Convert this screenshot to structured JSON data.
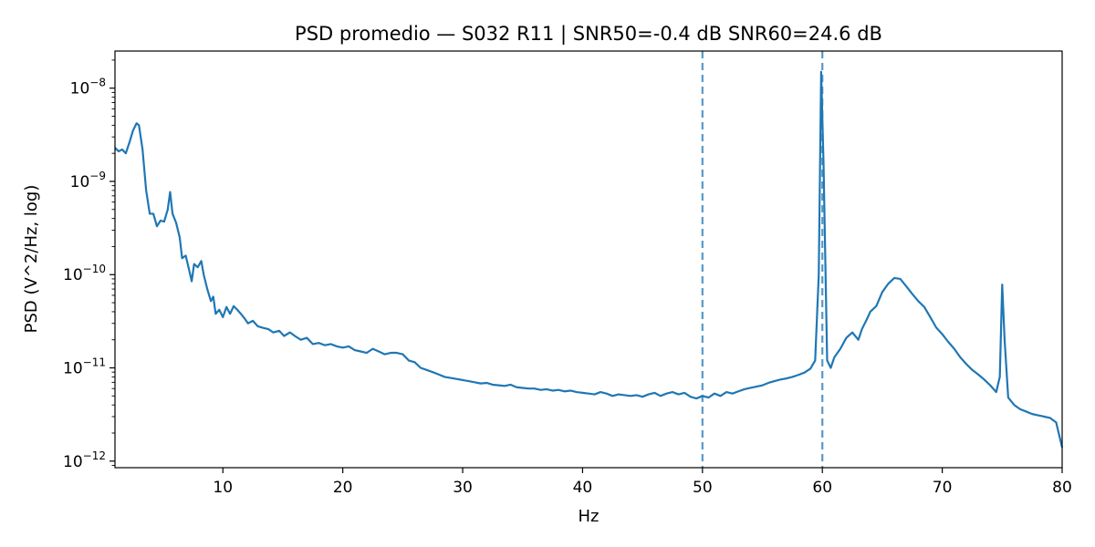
{
  "chart_data": {
    "type": "line",
    "title": "PSD promedio — S032 R11 | SNR50=-0.4 dB  SNR60=24.6 dB",
    "xlabel": "Hz",
    "ylabel": "PSD (V^2/Hz, log)",
    "xlim": [
      1,
      80
    ],
    "ylim": [
      8.5e-13,
      2.5e-08
    ],
    "yscale": "log",
    "grid": false,
    "xticks": [
      10,
      20,
      30,
      40,
      50,
      60,
      70,
      80
    ],
    "xtick_labels": [
      "10",
      "20",
      "30",
      "40",
      "50",
      "60",
      "70",
      "80"
    ],
    "yticks": [
      1e-12,
      1e-11,
      1e-10,
      1e-09,
      1e-08
    ],
    "ytick_labels": [
      {
        "base": "10",
        "exp": "−12"
      },
      {
        "base": "10",
        "exp": "−11"
      },
      {
        "base": "10",
        "exp": "−10"
      },
      {
        "base": "10",
        "exp": "−9"
      },
      {
        "base": "10",
        "exp": "−8"
      }
    ],
    "vlines": [
      {
        "x": 50,
        "style": "dashed"
      },
      {
        "x": 60,
        "style": "dashed"
      }
    ],
    "colors": {
      "series": "#1f77b4",
      "vline": "#1f77b4"
    },
    "series": [
      {
        "name": "",
        "points": [
          [
            1.0,
            2.3e-09
          ],
          [
            1.3,
            2.1e-09
          ],
          [
            1.6,
            2.2e-09
          ],
          [
            1.9,
            2e-09
          ],
          [
            2.2,
            2.6e-09
          ],
          [
            2.5,
            3.5e-09
          ],
          [
            2.8,
            4.2e-09
          ],
          [
            3.0,
            4e-09
          ],
          [
            3.3,
            2.2e-09
          ],
          [
            3.6,
            8e-10
          ],
          [
            3.9,
            4.5e-10
          ],
          [
            4.2,
            4.5e-10
          ],
          [
            4.5,
            3.3e-10
          ],
          [
            4.8,
            3.8e-10
          ],
          [
            5.1,
            3.7e-10
          ],
          [
            5.4,
            5e-10
          ],
          [
            5.6,
            7.7e-10
          ],
          [
            5.8,
            4.5e-10
          ],
          [
            6.1,
            3.6e-10
          ],
          [
            6.4,
            2.5e-10
          ],
          [
            6.6,
            1.5e-10
          ],
          [
            6.9,
            1.6e-10
          ],
          [
            7.2,
            1.1e-10
          ],
          [
            7.4,
            8.5e-11
          ],
          [
            7.6,
            1.3e-10
          ],
          [
            7.9,
            1.2e-10
          ],
          [
            8.2,
            1.4e-10
          ],
          [
            8.4,
            1e-10
          ],
          [
            8.7,
            7e-11
          ],
          [
            9.0,
            5.2e-11
          ],
          [
            9.2,
            5.8e-11
          ],
          [
            9.4,
            3.8e-11
          ],
          [
            9.7,
            4.2e-11
          ],
          [
            10.0,
            3.5e-11
          ],
          [
            10.3,
            4.5e-11
          ],
          [
            10.6,
            3.8e-11
          ],
          [
            10.9,
            4.6e-11
          ],
          [
            11.2,
            4.2e-11
          ],
          [
            11.5,
            3.8e-11
          ],
          [
            11.8,
            3.4e-11
          ],
          [
            12.1,
            3e-11
          ],
          [
            12.5,
            3.2e-11
          ],
          [
            12.9,
            2.8e-11
          ],
          [
            13.3,
            2.7e-11
          ],
          [
            13.8,
            2.6e-11
          ],
          [
            14.2,
            2.4e-11
          ],
          [
            14.7,
            2.5e-11
          ],
          [
            15.1,
            2.2e-11
          ],
          [
            15.6,
            2.4e-11
          ],
          [
            16.0,
            2.2e-11
          ],
          [
            16.5,
            2e-11
          ],
          [
            17.0,
            2.1e-11
          ],
          [
            17.5,
            1.8e-11
          ],
          [
            18.0,
            1.85e-11
          ],
          [
            18.5,
            1.75e-11
          ],
          [
            19.0,
            1.8e-11
          ],
          [
            19.5,
            1.7e-11
          ],
          [
            20.0,
            1.65e-11
          ],
          [
            20.5,
            1.7e-11
          ],
          [
            21.0,
            1.55e-11
          ],
          [
            21.5,
            1.5e-11
          ],
          [
            22.0,
            1.45e-11
          ],
          [
            22.5,
            1.6e-11
          ],
          [
            23.0,
            1.5e-11
          ],
          [
            23.5,
            1.4e-11
          ],
          [
            24.0,
            1.45e-11
          ],
          [
            24.5,
            1.45e-11
          ],
          [
            25.0,
            1.4e-11
          ],
          [
            25.5,
            1.2e-11
          ],
          [
            26.0,
            1.15e-11
          ],
          [
            26.5,
            1e-11
          ],
          [
            27.0,
            9.5e-12
          ],
          [
            27.5,
            9e-12
          ],
          [
            28.0,
            8.5e-12
          ],
          [
            28.5,
            8e-12
          ],
          [
            29.0,
            7.8e-12
          ],
          [
            29.5,
            7.6e-12
          ],
          [
            30.0,
            7.4e-12
          ],
          [
            30.5,
            7.2e-12
          ],
          [
            31.0,
            7e-12
          ],
          [
            31.5,
            6.8e-12
          ],
          [
            32.0,
            6.9e-12
          ],
          [
            32.5,
            6.6e-12
          ],
          [
            33.0,
            6.5e-12
          ],
          [
            33.5,
            6.4e-12
          ],
          [
            34.0,
            6.6e-12
          ],
          [
            34.5,
            6.2e-12
          ],
          [
            35.0,
            6.1e-12
          ],
          [
            35.5,
            6e-12
          ],
          [
            36.0,
            6e-12
          ],
          [
            36.5,
            5.8e-12
          ],
          [
            37.0,
            5.9e-12
          ],
          [
            37.5,
            5.7e-12
          ],
          [
            38.0,
            5.8e-12
          ],
          [
            38.5,
            5.6e-12
          ],
          [
            39.0,
            5.7e-12
          ],
          [
            39.5,
            5.5e-12
          ],
          [
            40.0,
            5.4e-12
          ],
          [
            40.5,
            5.3e-12
          ],
          [
            41.0,
            5.2e-12
          ],
          [
            41.5,
            5.5e-12
          ],
          [
            42.0,
            5.3e-12
          ],
          [
            42.5,
            5e-12
          ],
          [
            43.0,
            5.2e-12
          ],
          [
            43.5,
            5.1e-12
          ],
          [
            44.0,
            5e-12
          ],
          [
            44.5,
            5.1e-12
          ],
          [
            45.0,
            4.9e-12
          ],
          [
            45.5,
            5.2e-12
          ],
          [
            46.0,
            5.4e-12
          ],
          [
            46.5,
            5e-12
          ],
          [
            47.0,
            5.3e-12
          ],
          [
            47.5,
            5.5e-12
          ],
          [
            48.0,
            5.2e-12
          ],
          [
            48.5,
            5.4e-12
          ],
          [
            49.0,
            4.9e-12
          ],
          [
            49.5,
            4.7e-12
          ],
          [
            50.0,
            5e-12
          ],
          [
            50.5,
            4.8e-12
          ],
          [
            51.0,
            5.3e-12
          ],
          [
            51.5,
            5e-12
          ],
          [
            52.0,
            5.5e-12
          ],
          [
            52.5,
            5.3e-12
          ],
          [
            53.0,
            5.6e-12
          ],
          [
            53.5,
            5.9e-12
          ],
          [
            54.0,
            6.1e-12
          ],
          [
            54.5,
            6.3e-12
          ],
          [
            55.0,
            6.5e-12
          ],
          [
            55.5,
            6.9e-12
          ],
          [
            56.0,
            7.2e-12
          ],
          [
            56.5,
            7.5e-12
          ],
          [
            57.0,
            7.7e-12
          ],
          [
            57.5,
            8e-12
          ],
          [
            58.0,
            8.4e-12
          ],
          [
            58.5,
            8.9e-12
          ],
          [
            59.0,
            9.8e-12
          ],
          [
            59.4,
            1.2e-11
          ],
          [
            59.7,
            1e-10
          ],
          [
            59.9,
            1.5e-08
          ],
          [
            60.1,
            1.5e-09
          ],
          [
            60.4,
            1.2e-11
          ],
          [
            60.7,
            1e-11
          ],
          [
            61.0,
            1.3e-11
          ],
          [
            61.5,
            1.6e-11
          ],
          [
            62.0,
            2.1e-11
          ],
          [
            62.5,
            2.4e-11
          ],
          [
            63.0,
            2e-11
          ],
          [
            63.3,
            2.6e-11
          ],
          [
            63.7,
            3.3e-11
          ],
          [
            64.0,
            4e-11
          ],
          [
            64.5,
            4.6e-11
          ],
          [
            65.0,
            6.5e-11
          ],
          [
            65.5,
            8e-11
          ],
          [
            66.0,
            9.2e-11
          ],
          [
            66.5,
            9e-11
          ],
          [
            67.0,
            7.5e-11
          ],
          [
            67.5,
            6.2e-11
          ],
          [
            68.0,
            5.2e-11
          ],
          [
            68.5,
            4.5e-11
          ],
          [
            69.0,
            3.5e-11
          ],
          [
            69.5,
            2.7e-11
          ],
          [
            70.0,
            2.3e-11
          ],
          [
            70.5,
            1.9e-11
          ],
          [
            71.0,
            1.6e-11
          ],
          [
            71.5,
            1.3e-11
          ],
          [
            72.0,
            1.1e-11
          ],
          [
            72.5,
            9.5e-12
          ],
          [
            73.0,
            8.5e-12
          ],
          [
            73.5,
            7.5e-12
          ],
          [
            74.0,
            6.5e-12
          ],
          [
            74.5,
            5.5e-12
          ],
          [
            74.8,
            8e-12
          ],
          [
            75.0,
            7.8e-11
          ],
          [
            75.2,
            2e-11
          ],
          [
            75.5,
            4.8e-12
          ],
          [
            76.0,
            4e-12
          ],
          [
            76.5,
            3.6e-12
          ],
          [
            77.0,
            3.4e-12
          ],
          [
            77.5,
            3.2e-12
          ],
          [
            78.0,
            3.1e-12
          ],
          [
            78.5,
            3e-12
          ],
          [
            79.0,
            2.9e-12
          ],
          [
            79.5,
            2.6e-12
          ],
          [
            80.0,
            1.4e-12
          ]
        ]
      }
    ]
  }
}
